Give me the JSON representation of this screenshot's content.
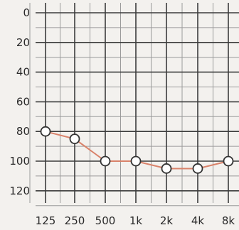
{
  "chart_data": {
    "type": "line",
    "title": "",
    "xlabel": "",
    "ylabel": "",
    "categories": [
      "125",
      "250",
      "500",
      "1k",
      "2k",
      "4k",
      "8k"
    ],
    "y_ticks": [
      "0",
      "20",
      "40",
      "60",
      "80",
      "100",
      "120"
    ],
    "ylim": [
      0,
      130
    ],
    "y_inverted": true,
    "grid": true,
    "legend": "none",
    "series": [
      {
        "values": [
          80,
          85,
          100,
          100,
          105,
          105,
          100
        ],
        "line_color": "#d9826a",
        "marker": "open-circle"
      }
    ]
  }
}
